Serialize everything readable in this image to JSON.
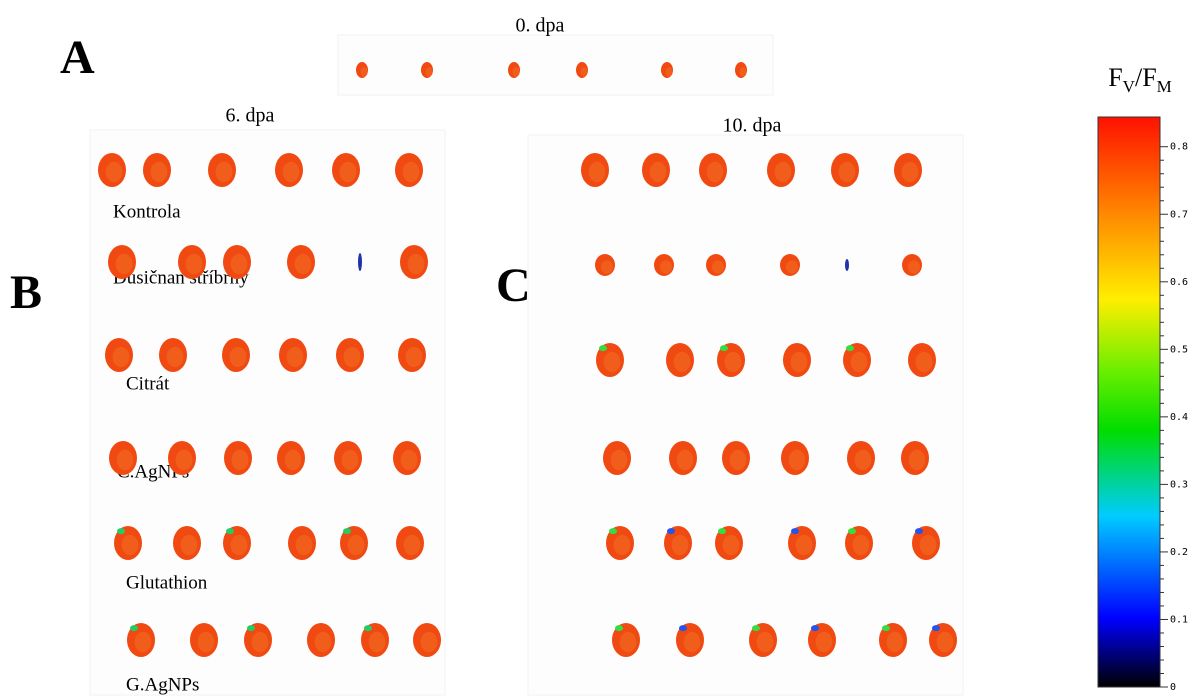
{
  "panels": {
    "a": "A",
    "b": "B",
    "c": "C"
  },
  "headings": {
    "day0": "0. dpa",
    "day6": "6. dpa",
    "day10": "10. dpa"
  },
  "rows": [
    "Kontrola",
    "Dusičnan stříbrný",
    "Citrát",
    "C.AgNPs",
    "Glutathion",
    "G.AgNPs"
  ],
  "colorbar": {
    "label": {
      "f1": "F",
      "sub1": "V",
      "slash": "/",
      "f2": "F",
      "sub2": "M"
    },
    "lim": [
      0,
      0.844
    ],
    "ticks": [
      0,
      0.1,
      0.2,
      0.3,
      0.4,
      0.5,
      0.6,
      0.7,
      0.8
    ]
  }
}
